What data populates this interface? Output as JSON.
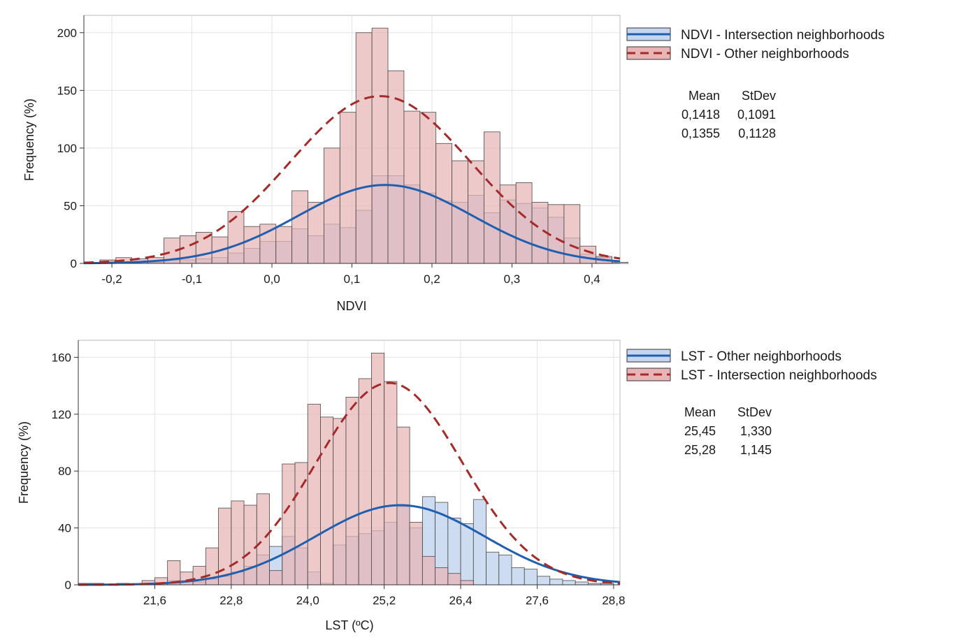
{
  "chart_data": [
    {
      "type": "histogram",
      "xlabel": "NDVI",
      "ylabel": "Frequency (%)",
      "xlim": [
        -0.235,
        0.435
      ],
      "ylim": [
        0,
        215
      ],
      "x_ticks": [
        "-0,2",
        "-0,1",
        "0,0",
        "0,1",
        "0,2",
        "0,3",
        "0,4"
      ],
      "y_ticks": [
        "0",
        "50",
        "100",
        "150",
        "200"
      ],
      "grid": true,
      "legend_position": "right",
      "bin_edges_start": -0.235,
      "bin_width": 0.02,
      "series": [
        {
          "name": "NDVI - Intersection neighborhoods",
          "color": "#1f5fb0",
          "fill": "#c5d6ee",
          "line_style": "solid",
          "counts": [
            0,
            2,
            1,
            1,
            1,
            3,
            3,
            4,
            5,
            9,
            13,
            19,
            19,
            30,
            24,
            34,
            31,
            46,
            76,
            76,
            68,
            61,
            54,
            53,
            59,
            44,
            55,
            52,
            48,
            40,
            22,
            8,
            5,
            1
          ],
          "fit_mean": 0.1418,
          "fit_peak": 68,
          "stats": {
            "mean": "0,1418",
            "stdev": "0,1091"
          }
        },
        {
          "name": "NDVI - Other neighborhoods",
          "color": "#a52a2a",
          "fill": "#e8b4b6",
          "line_style": "dashed",
          "counts": [
            0,
            3,
            5,
            4,
            5,
            22,
            24,
            27,
            23,
            45,
            32,
            34,
            32,
            63,
            53,
            100,
            131,
            200,
            204,
            167,
            132,
            131,
            104,
            89,
            89,
            114,
            68,
            70,
            53,
            51,
            51,
            15,
            6,
            0
          ],
          "fit_mean": 0.1355,
          "fit_peak": 145,
          "stats": {
            "mean": "0,1355",
            "stdev": "0,1128"
          }
        }
      ],
      "stats_headers": {
        "mean": "Mean",
        "stdev": "StDev"
      }
    },
    {
      "type": "histogram",
      "xlabel": "LST (ºC)",
      "ylabel": "Frequency (%)",
      "xlim": [
        20.4,
        28.9
      ],
      "ylim": [
        0,
        172
      ],
      "x_ticks": [
        "21,6",
        "22,8",
        "24,0",
        "25,2",
        "26,4",
        "27,6",
        "28,8"
      ],
      "y_ticks": [
        "0",
        "40",
        "80",
        "120",
        "160"
      ],
      "grid": true,
      "legend_position": "right",
      "bin_edges_start": 20.4,
      "bin_width": 0.2,
      "series": [
        {
          "name": "LST - Other neighborhoods",
          "color": "#1f5fb0",
          "fill": "#c5d6ee",
          "line_style": "solid",
          "counts": [
            1,
            1,
            0,
            0,
            0,
            1,
            1,
            3,
            3,
            2,
            4,
            6,
            9,
            13,
            21,
            27,
            34,
            26,
            9,
            1,
            28,
            34,
            36,
            38,
            44,
            55,
            40,
            62,
            58,
            47,
            43,
            60,
            23,
            21,
            12,
            11,
            6,
            4,
            3,
            2,
            1,
            1
          ],
          "fit_mean": 25.45,
          "fit_peak": 56,
          "stats": {
            "mean": "25,45",
            "stdev": "1,330"
          }
        },
        {
          "name": "LST - Intersection neighborhoods",
          "color": "#a52a2a",
          "fill": "#e8b4b6",
          "line_style": "dashed",
          "counts": [
            0,
            0,
            0,
            1,
            0,
            3,
            5,
            17,
            9,
            13,
            26,
            54,
            59,
            56,
            64,
            10,
            85,
            86,
            127,
            118,
            117,
            132,
            145,
            163,
            143,
            111,
            44,
            20,
            12,
            8,
            3,
            0,
            0,
            0,
            0,
            0,
            0,
            0,
            0,
            0,
            0,
            0
          ],
          "fit_mean": 25.28,
          "fit_peak": 142,
          "stats": {
            "mean": "25,28",
            "stdev": "1,145"
          }
        }
      ],
      "stats_headers": {
        "mean": "Mean",
        "stdev": "StDev"
      }
    }
  ]
}
